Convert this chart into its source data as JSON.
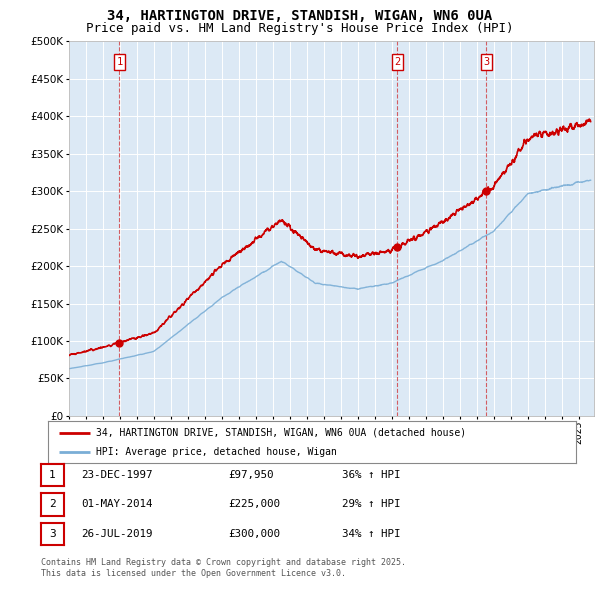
{
  "title1": "34, HARTINGTON DRIVE, STANDISH, WIGAN, WN6 0UA",
  "title2": "Price paid vs. HM Land Registry's House Price Index (HPI)",
  "ytick_vals": [
    0,
    50000,
    100000,
    150000,
    200000,
    250000,
    300000,
    350000,
    400000,
    450000,
    500000
  ],
  "xlim_start": 1995.0,
  "xlim_end": 2025.9,
  "ylim": [
    0,
    500000
  ],
  "sale1": {
    "date_num": 1997.97,
    "price": 97950,
    "label": "1",
    "date_str": "23-DEC-1997",
    "hpi_pct": "36% ↑ HPI"
  },
  "sale2": {
    "date_num": 2014.33,
    "price": 225000,
    "label": "2",
    "date_str": "01-MAY-2014",
    "hpi_pct": "29% ↑ HPI"
  },
  "sale3": {
    "date_num": 2019.57,
    "price": 300000,
    "label": "3",
    "date_str": "26-JUL-2019",
    "hpi_pct": "34% ↑ HPI"
  },
  "legend_line1": "34, HARTINGTON DRIVE, STANDISH, WIGAN, WN6 0UA (detached house)",
  "legend_line2": "HPI: Average price, detached house, Wigan",
  "footnote1": "Contains HM Land Registry data © Crown copyright and database right 2025.",
  "footnote2": "This data is licensed under the Open Government Licence v3.0.",
  "red_color": "#cc0000",
  "blue_color": "#7aaed6",
  "chart_bg": "#dce9f5",
  "fig_bg": "#ffffff",
  "grid_color": "#ffffff",
  "title_fontsize": 10,
  "subtitle_fontsize": 9,
  "tick_fontsize": 7.5
}
